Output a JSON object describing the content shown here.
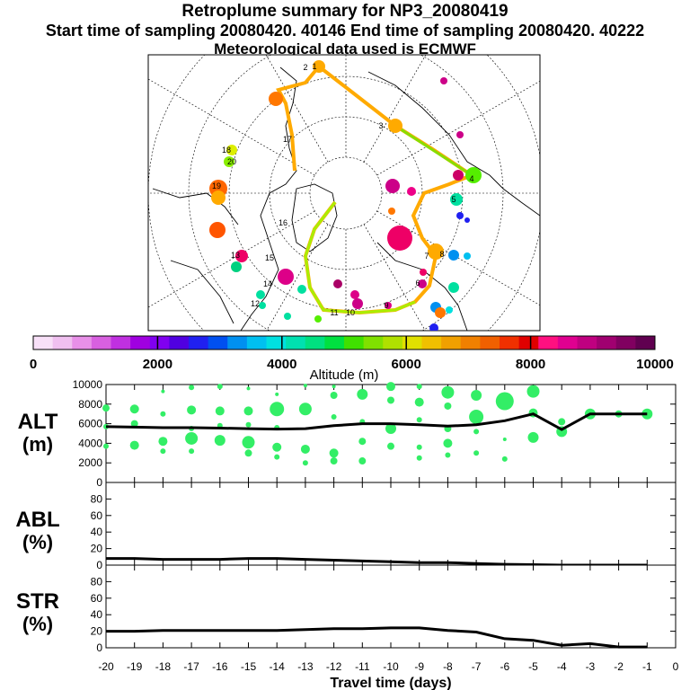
{
  "header": {
    "title": "Retroplume summary for NP3_20080419",
    "sampling": "Start time of sampling 20080420. 40146     End time of sampling 20080420. 40222",
    "met": "Meteorological data used is ECMWF"
  },
  "colorbar": {
    "label": "Altitude (m)",
    "tick_labels": [
      "0",
      "2000",
      "4000",
      "6000",
      "8000",
      "10000"
    ],
    "colors": [
      "#f8e0f8",
      "#f0c0f0",
      "#e890e8",
      "#d860e0",
      "#c030e0",
      "#a000e0",
      "#8000f0",
      "#5000e0",
      "#2020f0",
      "#0050f0",
      "#0090f0",
      "#00c0f0",
      "#00e0e0",
      "#00e0b0",
      "#00e080",
      "#00e040",
      "#40e000",
      "#80e000",
      "#b0e000",
      "#e0e000",
      "#f0c000",
      "#f0a000",
      "#f08000",
      "#f06000",
      "#f03000",
      "#e00000",
      "#ff1080",
      "#e00090",
      "#c00080",
      "#a00070",
      "#800060",
      "#600050"
    ]
  },
  "map": {
    "trajectory_labels": [
      "1",
      "2",
      "3",
      "4",
      "5",
      "6",
      "7",
      "8",
      "9",
      "10",
      "11",
      "12",
      "13",
      "14",
      "15",
      "16",
      "17",
      "18",
      "19",
      "20"
    ]
  },
  "colors": {
    "scatter": "#33ee66",
    "line": "#000000"
  },
  "chart_data": [
    {
      "type": "line",
      "name": "ALT",
      "ylabel": "ALT (m)",
      "ylim": [
        0,
        10000
      ],
      "yticks": [
        "0",
        "2000",
        "4000",
        "6000",
        "8000",
        "10000"
      ],
      "x": [
        -20,
        -19,
        -18,
        -17,
        -16,
        -15,
        -14,
        -13,
        -12,
        -11,
        -10,
        -9,
        -8,
        -7,
        -6,
        -5,
        -4,
        -3,
        -2,
        -1
      ],
      "values": [
        5700,
        5650,
        5600,
        5600,
        5550,
        5500,
        5450,
        5500,
        5800,
        6000,
        6000,
        5900,
        5750,
        5900,
        6300,
        7000,
        5400,
        7000,
        7000,
        7000
      ],
      "scatter": [
        [
          -20,
          7600,
          4
        ],
        [
          -20,
          5700,
          3
        ],
        [
          -20,
          3700,
          3
        ],
        [
          -19,
          7500,
          5
        ],
        [
          -19,
          6000,
          4
        ],
        [
          -19,
          3800,
          5
        ],
        [
          -18,
          9300,
          2
        ],
        [
          -18,
          7000,
          3
        ],
        [
          -18,
          4200,
          5
        ],
        [
          -18,
          3200,
          3
        ],
        [
          -17,
          9700,
          3
        ],
        [
          -17,
          7400,
          5
        ],
        [
          -17,
          5500,
          3
        ],
        [
          -17,
          4500,
          7
        ],
        [
          -17,
          3200,
          3
        ],
        [
          -16,
          9800,
          3
        ],
        [
          -16,
          7300,
          5
        ],
        [
          -16,
          5800,
          3
        ],
        [
          -16,
          4300,
          6
        ],
        [
          -15,
          9600,
          2
        ],
        [
          -15,
          7300,
          5
        ],
        [
          -15,
          5900,
          3
        ],
        [
          -15,
          4100,
          7
        ],
        [
          -15,
          3000,
          4
        ],
        [
          -14,
          9000,
          2
        ],
        [
          -14,
          7500,
          8
        ],
        [
          -14,
          5600,
          3
        ],
        [
          -14,
          3600,
          5
        ],
        [
          -14,
          2600,
          3
        ],
        [
          -13,
          9900,
          2
        ],
        [
          -13,
          7500,
          7
        ],
        [
          -13,
          3400,
          5
        ],
        [
          -13,
          2000,
          3
        ],
        [
          -12,
          9800,
          2
        ],
        [
          -12,
          8900,
          4
        ],
        [
          -12,
          6700,
          3
        ],
        [
          -12,
          3000,
          5
        ],
        [
          -12,
          2200,
          4
        ],
        [
          -11,
          9000,
          6
        ],
        [
          -11,
          6200,
          3
        ],
        [
          -11,
          4200,
          4
        ],
        [
          -11,
          2200,
          4
        ],
        [
          -10,
          9800,
          5
        ],
        [
          -10,
          8400,
          4
        ],
        [
          -10,
          5500,
          6
        ],
        [
          -10,
          3700,
          4
        ],
        [
          -9,
          9800,
          3
        ],
        [
          -9,
          8200,
          5
        ],
        [
          -9,
          6400,
          3
        ],
        [
          -9,
          3600,
          3
        ],
        [
          -9,
          2500,
          3
        ],
        [
          -8,
          9200,
          7
        ],
        [
          -8,
          7800,
          4
        ],
        [
          -8,
          5500,
          4
        ],
        [
          -8,
          4000,
          5
        ],
        [
          -8,
          2800,
          3
        ],
        [
          -7,
          8900,
          6
        ],
        [
          -7,
          6700,
          8
        ],
        [
          -7,
          5200,
          3
        ],
        [
          -7,
          3000,
          3
        ],
        [
          -6,
          8300,
          10
        ],
        [
          -6,
          4400,
          2
        ],
        [
          -6,
          2400,
          3
        ],
        [
          -5,
          9300,
          7
        ],
        [
          -5,
          7100,
          5
        ],
        [
          -5,
          4600,
          6
        ],
        [
          -4,
          6200,
          4
        ],
        [
          -4,
          5200,
          6
        ],
        [
          -3,
          7000,
          6
        ],
        [
          -2,
          7000,
          4
        ],
        [
          -1,
          7000,
          6
        ]
      ]
    },
    {
      "type": "line",
      "name": "ABL",
      "ylabel": "ABL (%)",
      "ylim": [
        0,
        100
      ],
      "yticks": [
        "0",
        "20",
        "40",
        "60",
        "80"
      ],
      "x": [
        -20,
        -19,
        -18,
        -17,
        -16,
        -15,
        -14,
        -13,
        -12,
        -11,
        -10,
        -9,
        -8,
        -7,
        -6,
        -5,
        -4,
        -3,
        -2,
        -1
      ],
      "values": [
        8,
        8,
        7,
        7,
        7,
        8,
        8,
        7,
        6,
        5,
        4,
        3,
        3,
        2,
        1,
        0.5,
        0,
        0,
        0,
        0
      ]
    },
    {
      "type": "line",
      "name": "STR",
      "ylabel": "STR (%)",
      "ylim": [
        0,
        100
      ],
      "yticks": [
        "0",
        "20",
        "40",
        "60",
        "80"
      ],
      "x": [
        -20,
        -19,
        -18,
        -17,
        -16,
        -15,
        -14,
        -13,
        -12,
        -11,
        -10,
        -9,
        -8,
        -7,
        -6,
        -5,
        -4,
        -3,
        -2,
        -1
      ],
      "values": [
        20,
        20,
        21,
        21,
        21,
        21,
        21,
        22,
        23,
        23,
        24,
        24,
        21,
        19,
        11,
        9,
        3,
        5,
        1,
        1
      ]
    }
  ],
  "xaxis": {
    "title": "Travel time (days)",
    "xlim": [
      -20,
      0
    ],
    "tick_labels": [
      "-20",
      "-19",
      "-18",
      "-17",
      "-16",
      "-15",
      "-14",
      "-13",
      "-12",
      "-11",
      "-10",
      "-9",
      "-8",
      "-7",
      "-6",
      "-5",
      "-4",
      "-3",
      "-2",
      "-1",
      "0"
    ]
  }
}
